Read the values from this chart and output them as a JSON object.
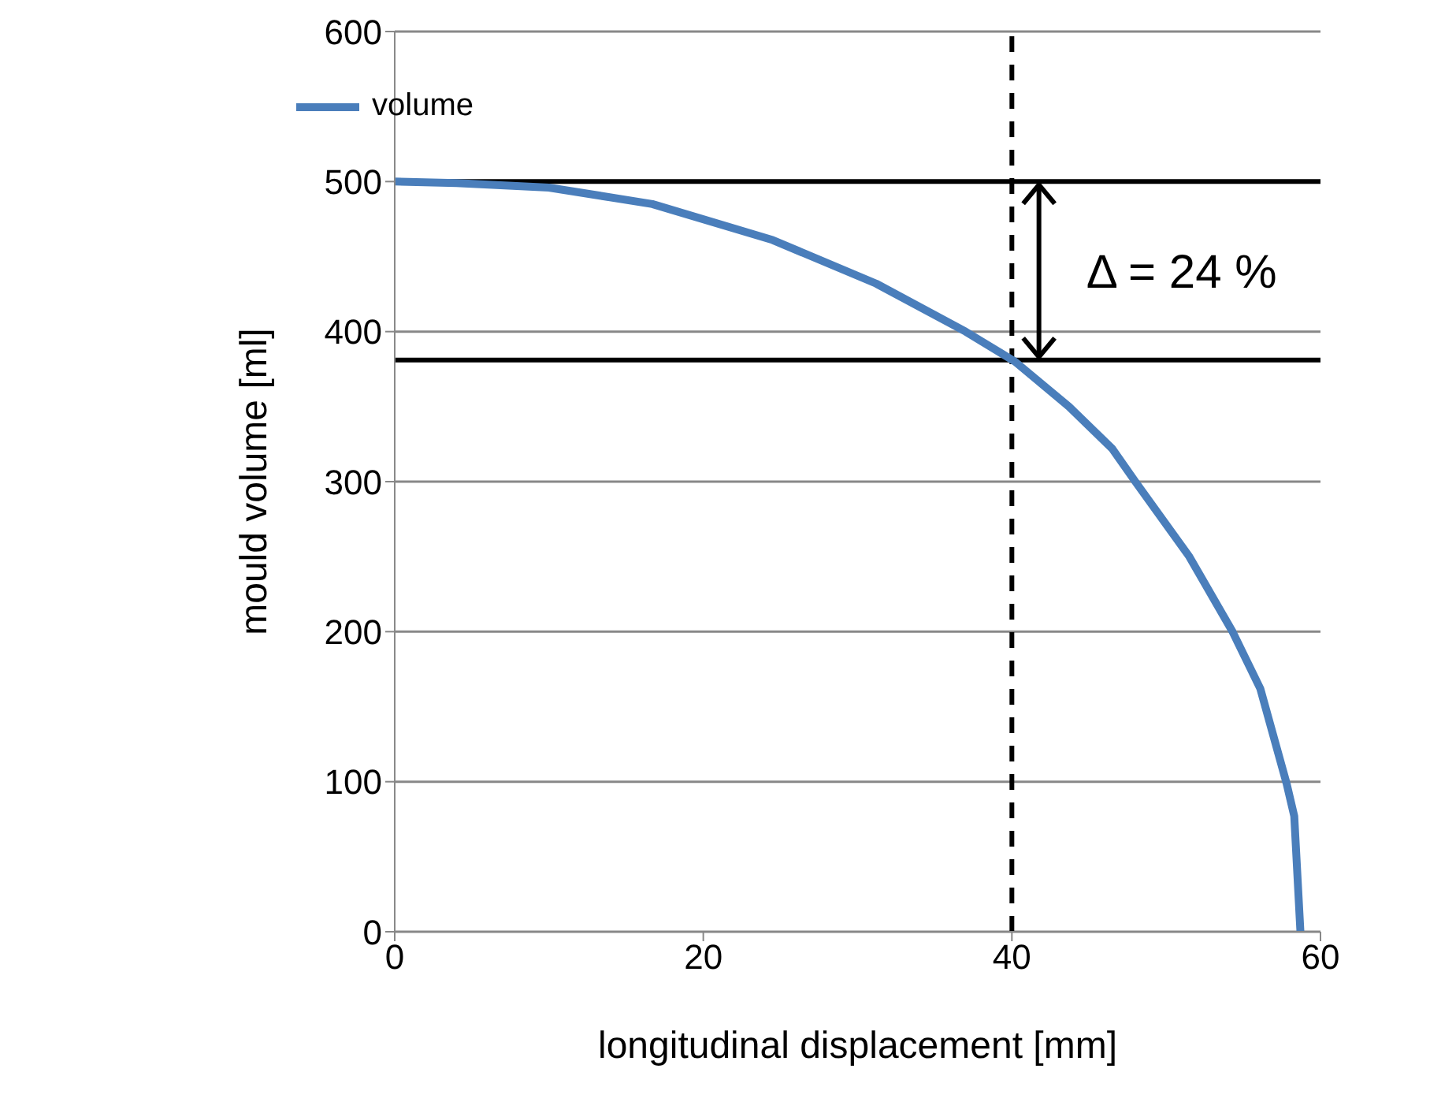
{
  "chart_data": {
    "type": "line",
    "xlabel": "longitudinal displacement [mm]",
    "ylabel": "mould volume [ml]",
    "series": [
      {
        "name": "volume",
        "color": "#4a7ebb",
        "x": [
          0,
          4,
          10,
          16.7,
          24.5,
          31.2,
          37,
          40.2,
          43.7,
          46.5,
          48,
          51.5,
          54.3,
          56.1,
          57.8,
          58.3,
          58.7
        ],
        "values": [
          500,
          499,
          496,
          485,
          461,
          432,
          400,
          380,
          350,
          322,
          300,
          250,
          200,
          162,
          99,
          77,
          0
        ]
      }
    ],
    "xlim": [
      0,
      60
    ],
    "xticks": [
      0,
      20,
      40,
      60
    ],
    "ylim": [
      0,
      600
    ],
    "yticks": [
      0,
      100,
      200,
      300,
      400,
      500,
      600
    ],
    "grid": "y",
    "legend": "top left",
    "marker": "none",
    "line_style": "solid",
    "ref_lines": [
      {
        "axis": "x",
        "value": 40,
        "color": "#000000",
        "line_style": "dashed"
      },
      {
        "axis": "y",
        "value": 500,
        "color": "#000000",
        "line_style": "solid"
      },
      {
        "axis": "y",
        "value": 381,
        "color": "#000000",
        "line_style": "solid"
      }
    ],
    "annotations": [
      "Δ = 24 %"
    ]
  }
}
